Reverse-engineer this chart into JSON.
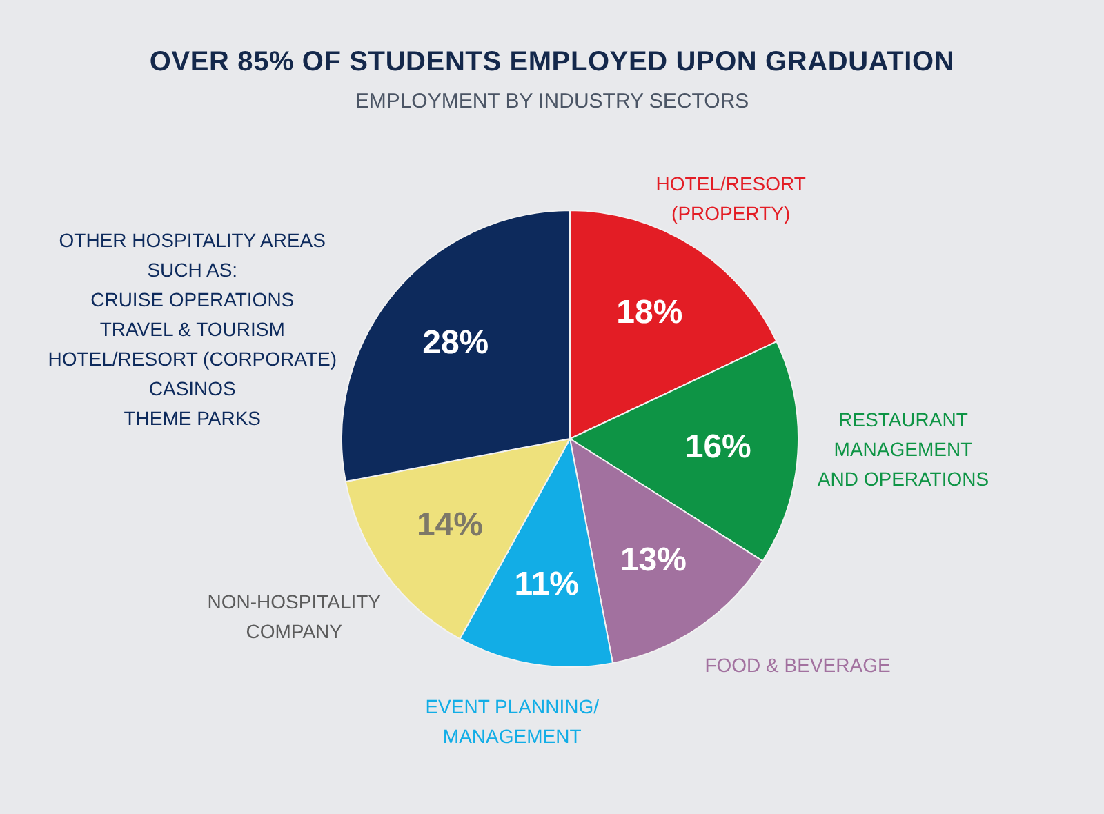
{
  "chart_data": {
    "type": "pie",
    "title": "OVER 85% OF STUDENTS EMPLOYED UPON GRADUATION",
    "subtitle": "EMPLOYMENT BY INDUSTRY SECTORS",
    "categories": [
      "HOTEL/RESORT\n(PROPERTY)",
      "RESTAURANT\nMANAGEMENT\nAND OPERATIONS",
      "FOOD & BEVERAGE",
      "EVENT PLANNING/\nMANAGEMENT",
      "NON-HOSPITALITY\nCOMPANY",
      "OTHER HOSPITALITY AREAS\nSUCH AS:\nCRUISE OPERATIONS\nTRAVEL & TOURISM\nHOTEL/RESORT (CORPORATE)\nCASINOS\nTHEME PARKS"
    ],
    "values": [
      18,
      16,
      13,
      11,
      14,
      28
    ],
    "colors": [
      "#e31d25",
      "#0e9445",
      "#a2719f",
      "#12ade6",
      "#eee17c",
      "#0d2a5c"
    ],
    "value_labels": [
      "18%",
      "16%",
      "13%",
      "11%",
      "14%",
      "28%"
    ],
    "legend": false
  }
}
